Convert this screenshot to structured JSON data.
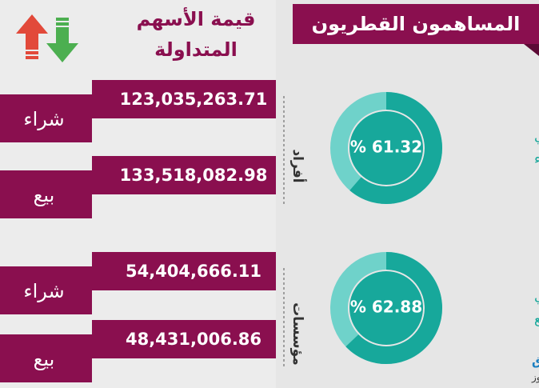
{
  "header": {
    "title": "المساهمون القطريون",
    "column_title": [
      "قيمة الأسهم",
      "المتداولة"
    ]
  },
  "groups": [
    {
      "label": "أفراد",
      "rows": [
        {
          "label": "شراء",
          "value": "123,035,263.71"
        },
        {
          "label": "بيع",
          "value": "133,518,082.98"
        }
      ]
    },
    {
      "label": "مؤسسات",
      "rows": [
        {
          "label": "شراء",
          "value": "54,404,666.11"
        },
        {
          "label": "بيع",
          "value": "48,431,006.86"
        }
      ]
    }
  ],
  "donuts": [
    {
      "caption": [
        "إجمالي",
        "نسبة الشراء"
      ],
      "value": 61.32,
      "value_label": "% 61.32"
    },
    {
      "caption": [
        "إجمالي",
        "نسبة البيع"
      ],
      "value": 62.88,
      "value_label": "% 62.88"
    }
  ],
  "colors": {
    "maroon": "#8a0f4f",
    "teal_dark": "#17a89b",
    "teal_light": "#6fd2ca"
  },
  "logo": {
    "brand": "الشرق",
    "sub": "جرافيك نيوز"
  }
}
